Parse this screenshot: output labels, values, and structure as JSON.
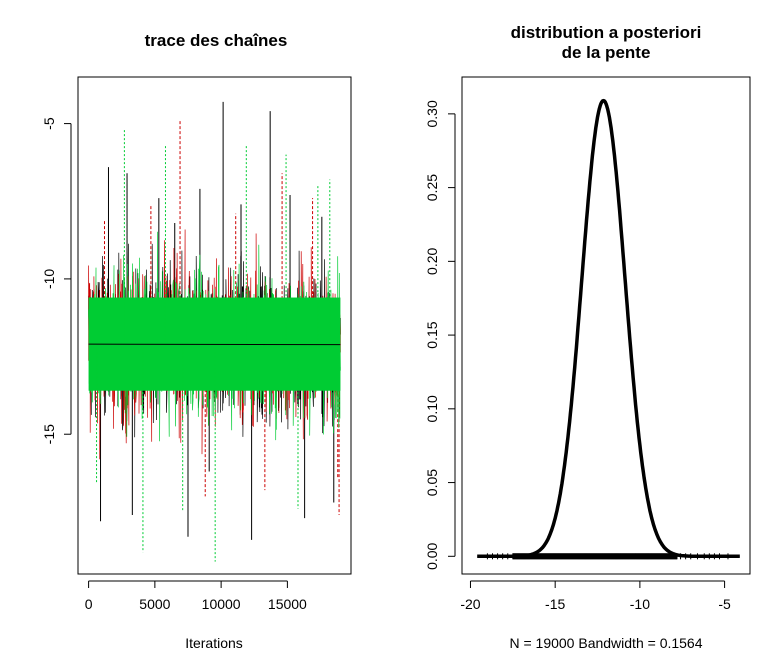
{
  "chart_data": [
    {
      "type": "line",
      "title": "trace des chaînes",
      "xlabel": "Iterations",
      "ylabel": "",
      "xlim": [
        -800,
        19800
      ],
      "ylim": [
        -19.5,
        -3.5
      ],
      "xticks": [
        0,
        5000,
        10000,
        15000
      ],
      "xtick_labels": [
        "0",
        "5000",
        "10000",
        "15000"
      ],
      "yticks": [
        -5,
        -10,
        -15
      ],
      "ytick_labels": [
        "-5",
        "-10",
        "-15"
      ],
      "grid": false,
      "legend": "none",
      "iterations": 19000,
      "center": -12.1,
      "series": [
        {
          "color": "#000000",
          "spread": 1.3,
          "core_half_width": 1.6,
          "extremes": [
            [
              1500,
              -6.4
            ],
            [
              2900,
              -6.6
            ],
            [
              5300,
              -7.4
            ],
            [
              6500,
              -8.2
            ],
            [
              7500,
              -18.3
            ],
            [
              8400,
              -7.1
            ],
            [
              9100,
              -16.2
            ],
            [
              10150,
              -4.3
            ],
            [
              11500,
              -7.6
            ],
            [
              12300,
              -18.4
            ],
            [
              13700,
              -4.6
            ],
            [
              15200,
              -7.3
            ],
            [
              16300,
              -17.7
            ],
            [
              17600,
              -8.0
            ],
            [
              18500,
              -17.2
            ],
            [
              900,
              -17.8
            ],
            [
              3300,
              -17.6
            ]
          ]
        },
        {
          "color": "#cc0000",
          "spread": 1.3,
          "core_half_width": 1.6,
          "extremes": [
            [
              1200,
              -8.1
            ],
            [
              4700,
              -7.6
            ],
            [
              6900,
              -4.9
            ],
            [
              8800,
              -17.0
            ],
            [
              11100,
              -7.9
            ],
            [
              13300,
              -16.8
            ],
            [
              14600,
              -6.6
            ],
            [
              16900,
              -7.4
            ],
            [
              18800,
              -16.4
            ],
            [
              18900,
              -17.6
            ]
          ]
        },
        {
          "color": "#00cc33",
          "spread": 1.25,
          "core_half_width": 1.5,
          "extremes": [
            [
              2700,
              -5.2
            ],
            [
              4100,
              -18.8
            ],
            [
              5800,
              -5.7
            ],
            [
              7100,
              -17.5
            ],
            [
              9550,
              -19.1
            ],
            [
              11900,
              -5.7
            ],
            [
              14900,
              -6.0
            ],
            [
              17300,
              -7.0
            ],
            [
              18200,
              -6.8
            ],
            [
              600,
              -16.6
            ],
            [
              15800,
              -17.4
            ]
          ]
        }
      ]
    },
    {
      "type": "line",
      "title": "distribution a posteriori\nde la pente",
      "xlabel": "N = 19000   Bandwidth = 0.1564",
      "ylabel": "",
      "xlim": [
        -20.5,
        -3.5
      ],
      "ylim": [
        -0.012,
        0.325
      ],
      "xticks": [
        -20,
        -15,
        -10,
        -5
      ],
      "xtick_labels": [
        "-20",
        "-15",
        "-10",
        "-5"
      ],
      "yticks": [
        0.0,
        0.05,
        0.1,
        0.15,
        0.2,
        0.25,
        0.3
      ],
      "ytick_labels": [
        "0.00",
        "0.05",
        "0.10",
        "0.15",
        "0.20",
        "0.25",
        "0.30"
      ],
      "grid": false,
      "legend": "none",
      "density": {
        "color": "#000000",
        "peak_x": -12.15,
        "peak_y": 0.309,
        "sd": 1.28
      },
      "support": [
        -19.6,
        -4.1
      ],
      "rug": {
        "dense_range": [
          -17.5,
          -7.8
        ],
        "sparse_points": [
          -19.0,
          -18.7,
          -18.4,
          -18.1,
          -17.8,
          -7.6,
          -7.3,
          -7.0,
          -6.6,
          -6.2,
          -5.9,
          -5.6,
          -5.3,
          -4.8
        ]
      }
    }
  ]
}
